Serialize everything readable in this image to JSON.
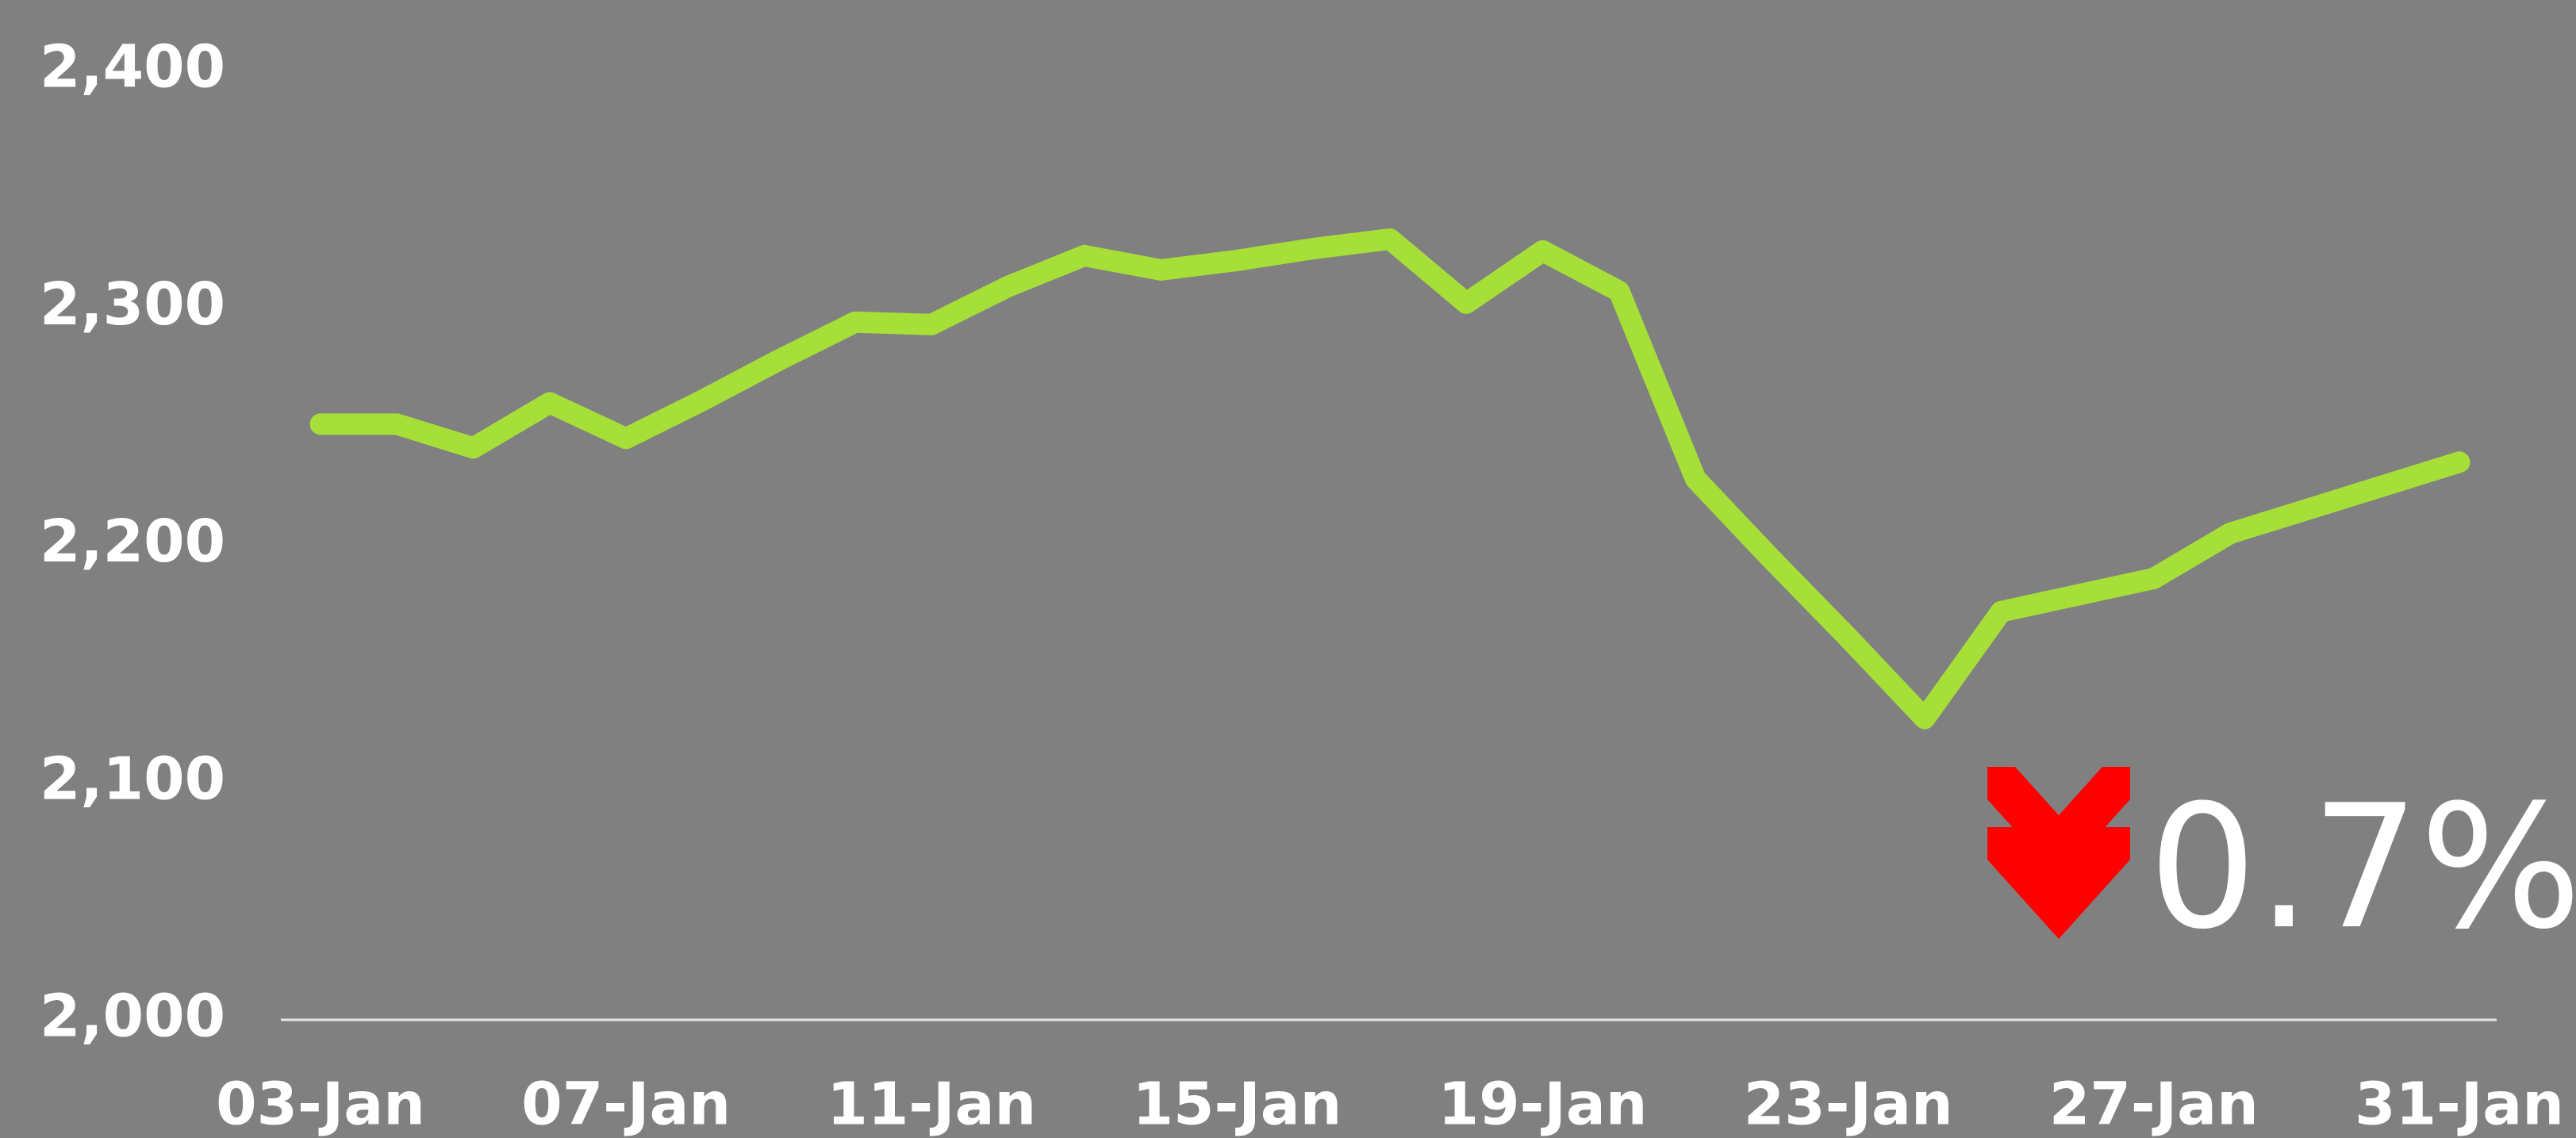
{
  "chart_data": {
    "type": "line",
    "categories": [
      "03-Jan",
      null,
      null,
      null,
      "07-Jan",
      null,
      null,
      null,
      "11-Jan",
      null,
      null,
      null,
      "15-Jan",
      null,
      null,
      null,
      "19-Jan",
      null,
      null,
      null,
      "23-Jan",
      null,
      null,
      null,
      "27-Jan",
      null,
      null,
      null,
      "31-Jan"
    ],
    "series": [
      {
        "color": "#a6df38",
        "values": [
          2251,
          2251,
          2241,
          2260,
          2245,
          2261,
          2278,
          2294,
          2293,
          2309,
          2322,
          2316,
          2320,
          2325,
          2329,
          2302,
          2324,
          2307,
          2228,
          2194,
          2161,
          2127,
          2172,
          2179,
          2186,
          2205,
          2215,
          2225,
          2235
        ]
      }
    ],
    "ylim": [
      2000,
      2400
    ],
    "yticks": [
      {
        "value": 2000,
        "label": "2,000"
      },
      {
        "value": 2100,
        "label": "2,100"
      },
      {
        "value": 2200,
        "label": "2,200"
      },
      {
        "value": 2300,
        "label": "2,300"
      },
      {
        "value": 2400,
        "label": "2,400"
      }
    ],
    "grid": false,
    "annotation": "0.7%"
  }
}
